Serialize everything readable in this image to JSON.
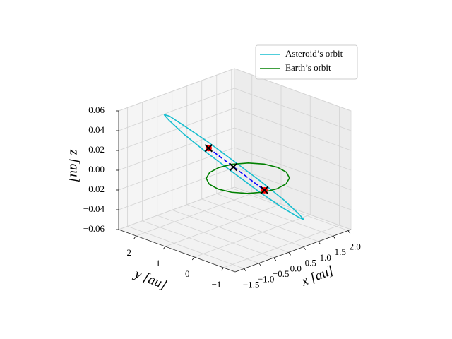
{
  "chart_data": {
    "type": "line3d",
    "xlabel": "x [au]",
    "ylabel": "y [au]",
    "zlabel": "z [au]",
    "xlim": [
      -1.8,
      2.1
    ],
    "ylim": [
      -1.4,
      2.6
    ],
    "zlim": [
      -0.06,
      0.06
    ],
    "xticks": [
      {
        "value": -1.5,
        "label": "−1.5"
      },
      {
        "value": -1.0,
        "label": "−1.0"
      },
      {
        "value": -0.5,
        "label": "−0.5"
      },
      {
        "value": 0.0,
        "label": "0.0"
      },
      {
        "value": 0.5,
        "label": "0.5"
      },
      {
        "value": 1.0,
        "label": "1.0"
      },
      {
        "value": 1.5,
        "label": "1.5"
      },
      {
        "value": 2.0,
        "label": "2.0"
      }
    ],
    "yticks": [
      {
        "value": -1,
        "label": "−1"
      },
      0,
      1,
      2
    ],
    "zticks": [
      {
        "value": -0.06,
        "label": "−0.06"
      },
      {
        "value": -0.04,
        "label": "−0.04"
      },
      {
        "value": -0.02,
        "label": "−0.02"
      },
      {
        "value": 0.0,
        "label": "0.00"
      },
      {
        "value": 0.02,
        "label": "0.02"
      },
      {
        "value": 0.04,
        "label": "0.04"
      },
      {
        "value": 0.06,
        "label": "0.06"
      }
    ],
    "grid": true,
    "legend": "upper right",
    "series": [
      {
        "name": "Asteroid’s orbit",
        "color": "#17becf",
        "x": [
          -0.98,
          -0.871,
          -0.621,
          -0.27,
          0.13,
          0.518,
          0.835,
          1.033,
          1.08,
          0.971,
          0.721,
          0.37,
          -0.03,
          -0.418,
          -0.735,
          -0.933,
          -0.98
        ],
        "y": [
          1.88,
          1.8,
          1.526,
          1.102,
          0.59,
          0.068,
          -0.382,
          -0.694,
          -0.82,
          -0.74,
          -0.466,
          -0.042,
          0.47,
          0.992,
          1.442,
          1.754,
          1.88
        ],
        "z": [
          0.055,
          0.053,
          0.043,
          0.028,
          0.009,
          -0.01,
          -0.027,
          -0.04,
          -0.045,
          -0.042,
          -0.033,
          -0.018,
          0.001,
          0.02,
          0.037,
          0.05,
          0.055
        ]
      },
      {
        "name": "Earth’s orbit",
        "color": "#008000",
        "x": [
          1,
          0.924,
          0.707,
          0.383,
          0,
          -0.383,
          -0.707,
          -0.924,
          -1,
          -0.924,
          -0.707,
          -0.383,
          0,
          0.383,
          0.707,
          0.924,
          1
        ],
        "y": [
          0,
          0.383,
          0.707,
          0.924,
          1,
          0.924,
          0.707,
          0.383,
          0,
          -0.383,
          -0.707,
          -0.924,
          -1,
          -0.924,
          -0.707,
          -0.383,
          0
        ],
        "z": [
          0,
          0,
          0,
          0,
          0,
          0,
          0,
          0,
          0,
          0,
          0,
          0,
          0,
          0,
          0,
          0,
          0
        ]
      },
      {
        "color": "#0000ff",
        "dashed": true,
        "x": [
          -0.32,
          0.5
        ],
        "y": [
          1.02,
          -0.06
        ],
        "z": [
          0.023,
          -0.017
        ]
      }
    ],
    "markers": [
      {
        "color": "#ff0000",
        "marker": "o",
        "x": [
          -0.32,
          0.5
        ],
        "y": [
          1.02,
          -0.06
        ],
        "z": [
          0.023,
          -0.017
        ]
      },
      {
        "color": "#000000",
        "marker": "x",
        "x": [
          -0.32,
          0.04,
          0.5
        ],
        "y": [
          1.02,
          0.54,
          -0.06
        ],
        "z": [
          0.023,
          0.005,
          -0.017
        ]
      }
    ]
  }
}
